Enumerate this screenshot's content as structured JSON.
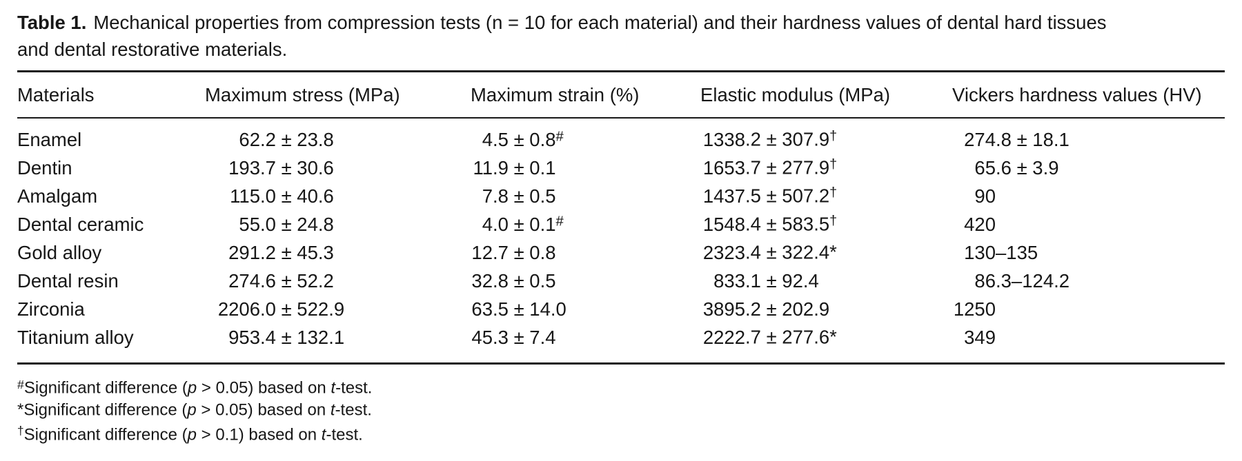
{
  "caption": {
    "label": "Table 1.",
    "line1": "Mechanical properties from compression tests (n = 10 for each material) and their hardness values of dental hard tissues",
    "line2": "and dental restorative materials."
  },
  "table": {
    "columns": [
      "Materials",
      "Maximum stress (MPa)",
      "Maximum strain (%)",
      "Elastic modulus (MPa)",
      "Vickers hardness values (HV)"
    ],
    "rows": [
      {
        "material": "Enamel",
        "values": [
          {
            "v": "62.2 ± 23.8"
          },
          {
            "v": "4.5 ± 0.8",
            "sup": "#"
          },
          {
            "v": "1338.2 ± 307.9",
            "sup": "†"
          },
          {
            "v": "274.8 ± 18.1"
          }
        ]
      },
      {
        "material": "Dentin",
        "values": [
          {
            "v": "193.7 ± 30.6"
          },
          {
            "v": "11.9 ± 0.1"
          },
          {
            "v": "1653.7 ± 277.9",
            "sup": "†"
          },
          {
            "v": "65.6 ± 3.9"
          }
        ]
      },
      {
        "material": "Amalgam",
        "values": [
          {
            "v": "115.0 ± 40.6"
          },
          {
            "v": "7.8 ± 0.5"
          },
          {
            "v": "1437.5 ± 507.2",
            "sup": "†"
          },
          {
            "v": "90"
          }
        ]
      },
      {
        "material": "Dental ceramic",
        "values": [
          {
            "v": "55.0 ± 24.8"
          },
          {
            "v": "4.0 ± 0.1",
            "sup": "#"
          },
          {
            "v": "1548.4 ± 583.5",
            "sup": "†"
          },
          {
            "v": "420"
          }
        ]
      },
      {
        "material": "Gold alloy",
        "values": [
          {
            "v": "291.2 ± 45.3"
          },
          {
            "v": "12.7 ± 0.8"
          },
          {
            "v": "2323.4 ± 322.4",
            "sup": "*"
          },
          {
            "v": "130–135"
          }
        ]
      },
      {
        "material": "Dental resin",
        "values": [
          {
            "v": "274.6 ± 52.2"
          },
          {
            "v": "32.8 ± 0.5"
          },
          {
            "v": "833.1 ± 92.4"
          },
          {
            "v": "86.3–124.2"
          }
        ]
      },
      {
        "material": "Zirconia",
        "values": [
          {
            "v": "2206.0 ± 522.9"
          },
          {
            "v": "63.5 ± 14.0"
          },
          {
            "v": "3895.2 ± 202.9"
          },
          {
            "v": "1250"
          }
        ]
      },
      {
        "material": "Titanium alloy",
        "values": [
          {
            "v": "953.4 ± 132.1"
          },
          {
            "v": "45.3 ± 7.4"
          },
          {
            "v": "2222.7 ± 277.6",
            "sup": "*"
          },
          {
            "v": "349"
          }
        ]
      }
    ]
  },
  "footnotes": [
    {
      "marker": "#",
      "text": "Significant difference (p > 0.05) based on t-test."
    },
    {
      "marker": "*",
      "text": "Significant difference (p > 0.05) based on t-test."
    },
    {
      "marker": "†",
      "text": "Significant difference (p > 0.1) based on t-test."
    }
  ]
}
